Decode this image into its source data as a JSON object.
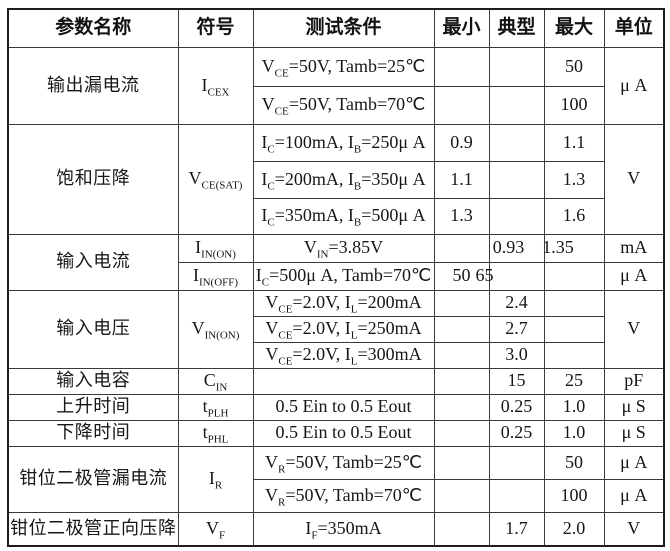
{
  "colors": {
    "background": "#ffffff",
    "text": "#171717",
    "border": "#3a3a3a"
  },
  "table": {
    "headers": [
      "参数名称",
      "符号",
      "测试条件",
      "最小",
      "典型",
      "最大",
      "单位"
    ],
    "groups": [
      {
        "param": "输出漏电流",
        "symbol": "I~CEX~",
        "unit": "μ A",
        "rows": [
          {
            "cond": "V~CE~=50V, Tamb=25℃",
            "min": "",
            "typ": "",
            "max": "50"
          },
          {
            "cond": "V~CE~=50V, Tamb=70℃",
            "min": "",
            "typ": "",
            "max": "100"
          }
        ]
      },
      {
        "param": "饱和压降",
        "symbol": "V~CE(SAT)~",
        "unit": "V",
        "rows": [
          {
            "cond": "I~C~=100mA, I~B~=250μ A",
            "min": "0.9",
            "typ": "",
            "max": "1.1"
          },
          {
            "cond": "I~C~=200mA, I~B~=350μ A",
            "min": "1.1",
            "typ": "",
            "max": "1.3"
          },
          {
            "cond": "I~C~=350mA, I~B~=500μ A",
            "min": "1.3",
            "typ": "",
            "max": "1.6"
          }
        ]
      },
      {
        "param": "输入电流",
        "rows": [
          {
            "symbol": "I~IN(ON)~",
            "cond": "V~IN~=3.85V",
            "min": "",
            "typ": "0.93",
            "max": "1.35",
            "unit": "mA"
          },
          {
            "symbol": "I~IN(OFF)~",
            "cond": "I~C~=500μ A, Tamb=70℃",
            "min": "50",
            "typ": "65",
            "max": "",
            "unit": "μ A"
          }
        ]
      },
      {
        "param": "输入电压",
        "symbol": "V~IN(ON)~",
        "unit": "V",
        "rows": [
          {
            "cond": "V~CE~=2.0V, I~L~=200mA",
            "min": "",
            "typ": "2.4",
            "max": ""
          },
          {
            "cond": "V~CE~=2.0V, I~L~=250mA",
            "min": "",
            "typ": "2.7",
            "max": ""
          },
          {
            "cond": "V~CE~=2.0V, I~L~=300mA",
            "min": "",
            "typ": "3.0",
            "max": ""
          }
        ]
      },
      {
        "param": "输入电容",
        "symbol": "C~IN~",
        "cond": "",
        "min": "",
        "typ": "15",
        "max": "25",
        "unit": "pF"
      },
      {
        "param": "上升时间",
        "symbol": "t~PLH~",
        "cond": "0.5 Ein to 0.5 Eout",
        "min": "",
        "typ": "0.25",
        "max": "1.0",
        "unit": "μ S"
      },
      {
        "param": "下降时间",
        "symbol": "t~PHL~",
        "cond": "0.5 Ein to 0.5 Eout",
        "min": "",
        "typ": "0.25",
        "max": "1.0",
        "unit": "μ S"
      },
      {
        "param": "钳位二极管漏电流",
        "symbol": "I~R~",
        "rows": [
          {
            "cond": "V~R~=50V, Tamb=25℃",
            "min": "",
            "typ": "",
            "max": "50",
            "unit": "μ A"
          },
          {
            "cond": "V~R~=50V, Tamb=70℃",
            "min": "",
            "typ": "",
            "max": "100",
            "unit": "μ A"
          }
        ]
      },
      {
        "param": "钳位二极管正向压降",
        "symbol": "V~F~",
        "cond": "I~F~=350mA",
        "min": "",
        "typ": "1.7",
        "max": "2.0",
        "unit": "V"
      }
    ]
  }
}
